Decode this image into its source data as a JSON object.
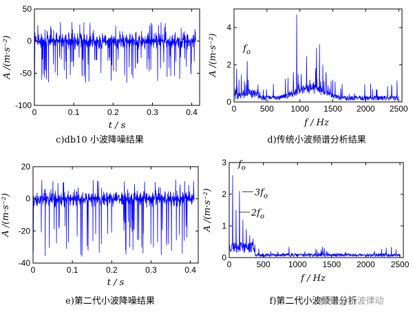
{
  "chart_data": [
    {
      "id": "c",
      "type": "line",
      "caption": "c)db10 小波降噪结果",
      "xlabel": "t / s",
      "ylabel": "A /(m·s⁻²)",
      "xlim": [
        0,
        0.42
      ],
      "ylim": [
        -100,
        50
      ],
      "xticks": [
        "0",
        "0.1",
        "0.2",
        "0.3",
        "0.4"
      ],
      "xtick_values": [
        0,
        0.1,
        0.2,
        0.3,
        0.4
      ],
      "yticks": [
        "50",
        "0",
        "-50",
        "-100"
      ],
      "ytick_values": [
        50,
        0,
        -50,
        -100
      ],
      "signal": {
        "kind": "noise",
        "x_end": 0.41,
        "amplitude": 14,
        "spike_min": -65,
        "spike_max": 30,
        "seed": 7
      },
      "color": "#0000ff",
      "grid": false
    },
    {
      "id": "d",
      "type": "line",
      "caption": "d)传统小波频谱分析结果",
      "xlabel": "f / Hz",
      "ylabel": "A /(m·s⁻²)",
      "xlim": [
        0,
        2550
      ],
      "ylim": [
        0,
        5
      ],
      "xticks": [
        "0",
        "500",
        "1000",
        "1500",
        "2000",
        "2500"
      ],
      "xtick_values": [
        0,
        500,
        1000,
        1500,
        2000,
        2500
      ],
      "yticks": [
        "0",
        "2",
        "4"
      ],
      "ytick_values": [
        0,
        2,
        4
      ],
      "peaks": [
        [
          40,
          1.8
        ],
        [
          110,
          1.45
        ],
        [
          200,
          2.2
        ],
        [
          300,
          0.6
        ],
        [
          820,
          1.3
        ],
        [
          900,
          1.6
        ],
        [
          950,
          4.7
        ],
        [
          1020,
          1.5
        ],
        [
          1100,
          2.45
        ],
        [
          1150,
          1.2
        ],
        [
          1250,
          2.9
        ],
        [
          1300,
          3.1
        ],
        [
          1350,
          2.0
        ],
        [
          1400,
          1.6
        ],
        [
          1500,
          1.2
        ]
      ],
      "signal": {
        "kind": "spectrum",
        "x_end": 2500,
        "seed": 11
      },
      "annotations": [
        {
          "label": "f",
          "sub": "o",
          "x": 200,
          "y": 2.2
        }
      ],
      "color": "#0000ff",
      "grid": false
    },
    {
      "id": "e",
      "type": "line",
      "caption": "e)第二代小波降噪结果",
      "xlabel": "t / s",
      "ylabel": "A /(m·s⁻²)",
      "xlim": [
        0,
        0.42
      ],
      "ylim": [
        -40,
        20
      ],
      "xticks": [
        "0",
        "0.1",
        "0.2",
        "0.3",
        "0.4"
      ],
      "xtick_values": [
        0,
        0.1,
        0.2,
        0.3,
        0.4
      ],
      "yticks": [
        "20",
        "0",
        "-20",
        "-40"
      ],
      "ytick_values": [
        20,
        0,
        -20,
        -40
      ],
      "signal": {
        "kind": "noise",
        "x_end": 0.41,
        "amplitude": 5.5,
        "spike_min": -37,
        "spike_max": 12,
        "seed": 19
      },
      "color": "#0000ff",
      "grid": false
    },
    {
      "id": "f",
      "type": "line",
      "caption": "f)第二代小波频谱分析",
      "xlabel": "f / Hz",
      "ylabel": "A /(m·s⁻²)",
      "xlim": [
        0,
        2550
      ],
      "ylim": [
        0,
        3
      ],
      "xticks": [
        "0",
        "500",
        "1000",
        "1500",
        "2000",
        "2500"
      ],
      "xtick_values": [
        0,
        500,
        1000,
        1500,
        2000,
        2500
      ],
      "yticks": [
        "0",
        "1",
        "2",
        "3"
      ],
      "ytick_values": [
        0,
        1,
        2,
        3
      ],
      "peaks": [
        [
          50,
          2.6
        ],
        [
          100,
          1.5
        ],
        [
          150,
          2.1
        ],
        [
          200,
          1.2
        ],
        [
          250,
          0.9
        ],
        [
          300,
          0.7
        ],
        [
          350,
          0.6
        ]
      ],
      "signal": {
        "kind": "spectrum",
        "x_end": 2500,
        "seed": 23
      },
      "annotations": [
        {
          "label": "f",
          "sub": "o",
          "x": 50,
          "y": 2.6
        },
        {
          "label": "3f",
          "sub": "o",
          "x": 150,
          "y": 2.1
        },
        {
          "label": "2f",
          "sub": "o",
          "x": 100,
          "y": 1.5
        }
      ],
      "color": "#0000ff",
      "grid": false
    }
  ],
  "watermark": "知乎 @小波律动"
}
